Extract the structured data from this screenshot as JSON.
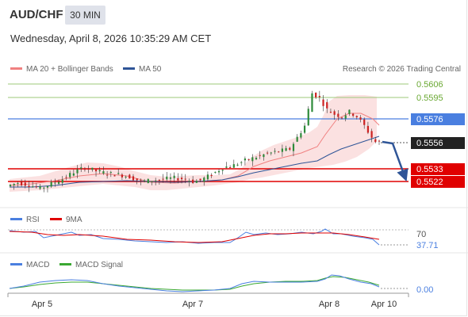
{
  "header": {
    "symbol": "AUD/CHF",
    "timeframe": "30 MIN",
    "datetime": "Wednesday, April 8, 2026 10:35:29 AM CET"
  },
  "legend": {
    "ma20_label": "MA 20 + Bollinger Bands",
    "ma50_label": "MA 50",
    "credit": "Research © 2026 Trading Central",
    "ma20_color": "#f08080",
    "ma50_color": "#2f5597"
  },
  "levels": {
    "resistance_2": "0.5606",
    "resistance_1": "0.5595",
    "pivot": "0.5576",
    "current": "0.5556",
    "support_1": "0.5533",
    "support_2": "0.5522",
    "resistance_color": "#6aa832",
    "pivot_color": "#4a7fe0",
    "support_color": "#e00000"
  },
  "rsi": {
    "label": "RSI",
    "ma_label": "9MA",
    "level_label": "70",
    "value_label": "37.71"
  },
  "macd": {
    "label": "MACD",
    "signal_label": "MACD Signal",
    "value_label": "0.00"
  },
  "x_axis": {
    "ticks": [
      "Apr 5",
      "Apr 7",
      "Apr 8",
      "Apr 10"
    ]
  },
  "chart_data": {
    "type": "line",
    "title": "AUD/CHF 30 MIN",
    "y_range": [
      0.5512,
      0.5612
    ],
    "price_path": [
      [
        0,
        0.5518
      ],
      [
        6,
        0.5521
      ],
      [
        12,
        0.5519
      ],
      [
        18,
        0.5516
      ],
      [
        24,
        0.552
      ],
      [
        30,
        0.5524
      ],
      [
        36,
        0.553
      ],
      [
        42,
        0.5534
      ],
      [
        48,
        0.5531
      ],
      [
        54,
        0.5529
      ],
      [
        60,
        0.5528
      ],
      [
        66,
        0.5526
      ],
      [
        72,
        0.5522
      ],
      [
        78,
        0.5523
      ],
      [
        84,
        0.5524
      ],
      [
        90,
        0.5525
      ],
      [
        96,
        0.5524
      ],
      [
        100,
        0.5522
      ],
      [
        104,
        0.5523
      ],
      [
        110,
        0.5528
      ],
      [
        116,
        0.5534
      ],
      [
        122,
        0.5536
      ],
      [
        128,
        0.554
      ],
      [
        134,
        0.5543
      ],
      [
        140,
        0.5546
      ],
      [
        146,
        0.5548
      ],
      [
        152,
        0.555
      ],
      [
        156,
        0.556
      ],
      [
        160,
        0.557
      ],
      [
        164,
        0.5598
      ],
      [
        168,
        0.5594
      ],
      [
        172,
        0.5584
      ],
      [
        176,
        0.558
      ],
      [
        180,
        0.5578
      ],
      [
        184,
        0.5582
      ],
      [
        188,
        0.5578
      ],
      [
        192,
        0.557
      ],
      [
        196,
        0.556
      ],
      [
        198,
        0.5556
      ]
    ],
    "projection": [
      [
        198,
        0.5556
      ],
      [
        204,
        0.5555
      ],
      [
        214,
        0.5522
      ]
    ],
    "rsi_overbought": 70,
    "rsi_last": 37.71,
    "macd_last": 0.0
  }
}
